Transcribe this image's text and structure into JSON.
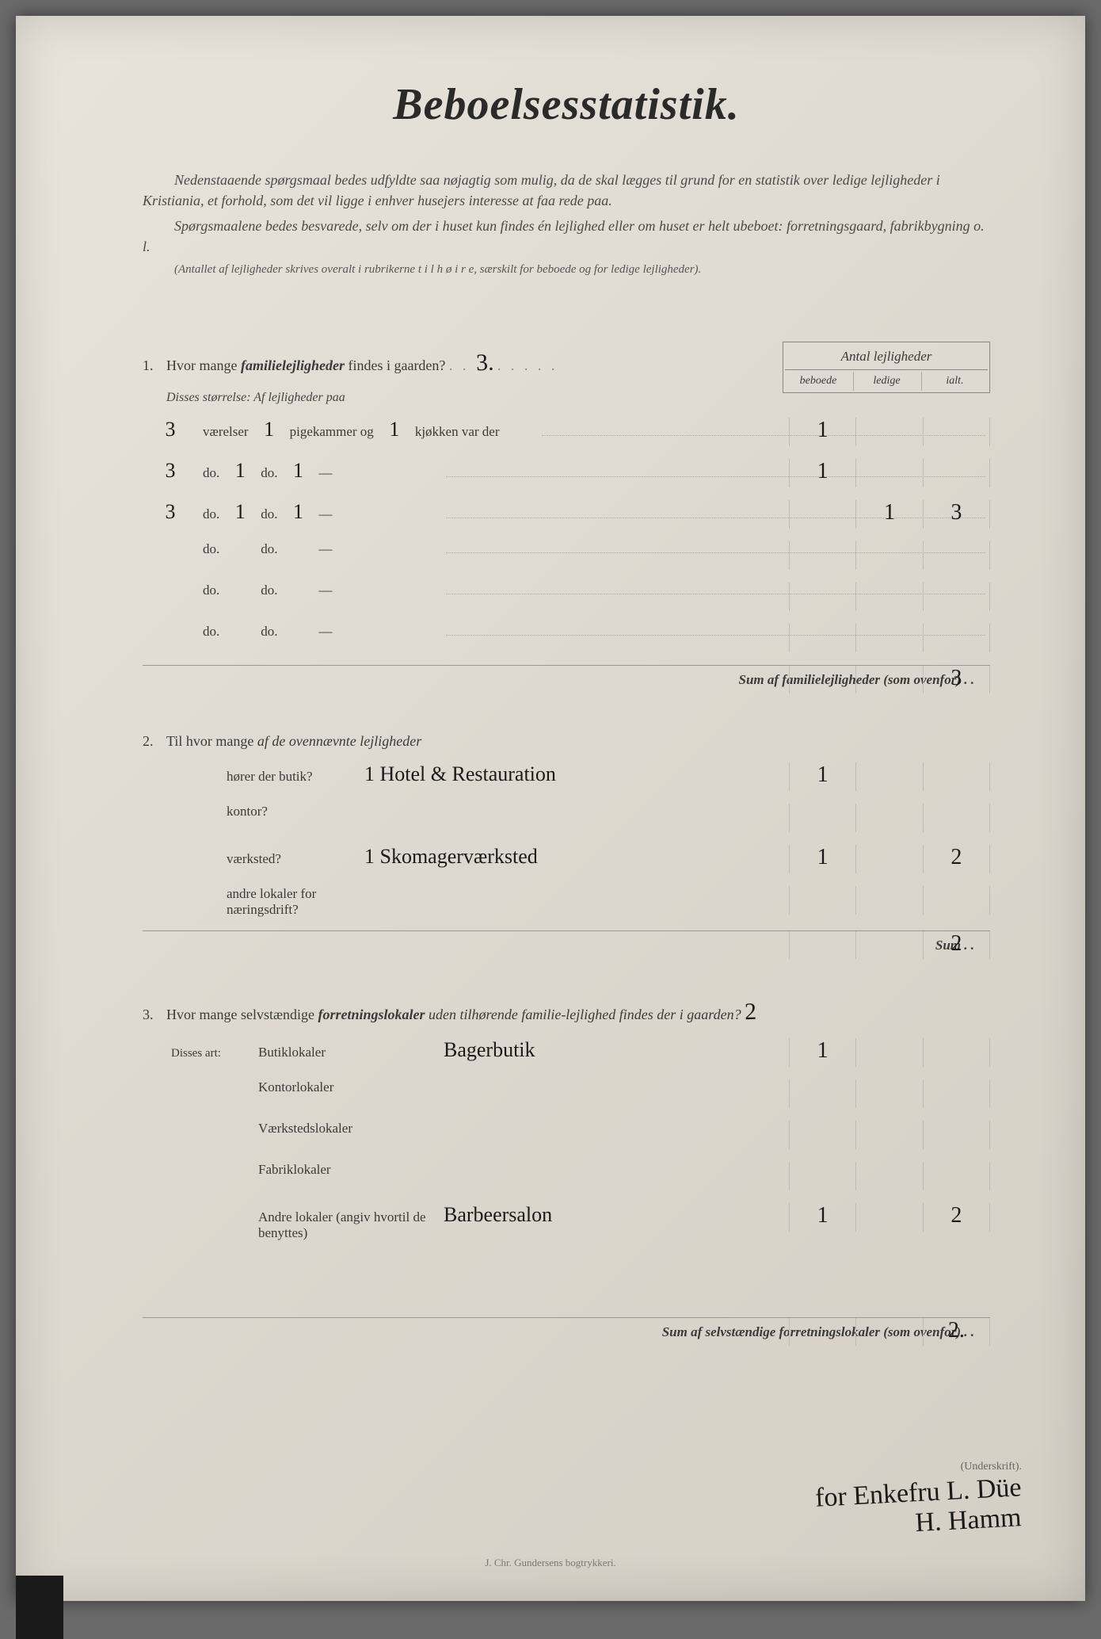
{
  "title": "Beboelsesstatistik.",
  "intro1": "Nedenstaaende spørgsmaal bedes udfyldte saa nøjagtig som mulig, da de skal lægges til grund for en statistik over ledige lejligheder i Kristiania, et forhold, som det vil ligge i enhver husejers interesse at faa rede paa.",
  "intro2": "Spørgsmaalene bedes besvarede, selv om der i huset kun findes én lejlighed eller om huset er helt ubeboet: forretningsgaard, fabrikbygning o. l.",
  "intro3": "(Antallet af lejligheder skrives overalt i rubrikerne t i l  h ø i r e, særskilt for beboede og for ledige lejligheder).",
  "col_header_top": "Antal lejligheder",
  "col_headers": {
    "beboede": "beboede",
    "ledige": "ledige",
    "ialt": "ialt."
  },
  "q1": {
    "num": "1.",
    "text_a": "Hvor mange ",
    "text_b": "familielejligheder",
    "text_c": " findes i gaarden?",
    "answer": "3.",
    "sub": "Disses størrelse:  Af lejligheder paa",
    "rows": [
      {
        "vaer": "3",
        "vaer_lbl": "værelser",
        "pige": "1",
        "pige_lbl": "pigekammer og",
        "kjok": "1",
        "kjok_lbl": "kjøkken var der",
        "beboede": "1",
        "ledige": "",
        "ialt": ""
      },
      {
        "vaer": "3",
        "vaer_lbl": "do.",
        "pige": "1",
        "pige_lbl": "do.",
        "kjok": "1",
        "kjok_lbl": "—",
        "beboede": "1",
        "ledige": "",
        "ialt": ""
      },
      {
        "vaer": "3",
        "vaer_lbl": "do.",
        "pige": "1",
        "pige_lbl": "do.",
        "kjok": "1",
        "kjok_lbl": "—",
        "beboede": "",
        "ledige": "1",
        "ialt": "3"
      },
      {
        "vaer": "",
        "vaer_lbl": "do.",
        "pige": "",
        "pige_lbl": "do.",
        "kjok": "",
        "kjok_lbl": "—",
        "beboede": "",
        "ledige": "",
        "ialt": ""
      },
      {
        "vaer": "",
        "vaer_lbl": "do.",
        "pige": "",
        "pige_lbl": "do.",
        "kjok": "",
        "kjok_lbl": "—",
        "beboede": "",
        "ledige": "",
        "ialt": ""
      },
      {
        "vaer": "",
        "vaer_lbl": "do.",
        "pige": "",
        "pige_lbl": "do.",
        "kjok": "",
        "kjok_lbl": "—",
        "beboede": "",
        "ledige": "",
        "ialt": ""
      }
    ],
    "sum_label": "Sum af familielejligheder (som ovenfor) . .",
    "sum_ialt": "3"
  },
  "q2": {
    "num": "2.",
    "text_a": "Til hvor mange ",
    "text_b": "af de ovennævnte lejligheder",
    "lines": [
      {
        "label": "hører der butik?",
        "hand": "1  Hotel & Restauration",
        "beboede": "1",
        "ledige": "",
        "ialt": ""
      },
      {
        "label": "kontor?",
        "hand": "",
        "beboede": "",
        "ledige": "",
        "ialt": ""
      },
      {
        "label": "værksted?",
        "hand": "1 Skomagerværksted",
        "beboede": "1",
        "ledige": "",
        "ialt": "2"
      },
      {
        "label": "andre lokaler for næringsdrift?",
        "hand": "",
        "beboede": "",
        "ledige": "",
        "ialt": ""
      }
    ],
    "sum_label": "Sum . .",
    "sum_ialt": "2"
  },
  "q3": {
    "num": "3.",
    "text_a": "Hvor mange selvstændige ",
    "text_b": "forretningslokaler",
    "text_c": " uden tilhørende familie-lejlighed findes der i gaarden?",
    "answer": "2",
    "sub": "Disses art:",
    "lines": [
      {
        "label": "Butiklokaler",
        "hand": "Bagerbutik",
        "beboede": "1",
        "ledige": "",
        "ialt": ""
      },
      {
        "label": "Kontorlokaler",
        "hand": "",
        "beboede": "",
        "ledige": "",
        "ialt": ""
      },
      {
        "label": "Værkstedslokaler",
        "hand": "",
        "beboede": "",
        "ledige": "",
        "ialt": ""
      },
      {
        "label": "Fabriklokaler",
        "hand": "",
        "beboede": "",
        "ledige": "",
        "ialt": ""
      },
      {
        "label": "Andre lokaler (angiv hvortil de benyttes)",
        "hand": "Barbeersalon",
        "beboede": "1",
        "ledige": "",
        "ialt": "2"
      }
    ],
    "sum_label": "Sum af selvstændige forretningslokaler (som ovenfor) . .",
    "sum_ialt": "2."
  },
  "signature_label": "(Underskrift).",
  "signature1": "for Enkefru L. Düe",
  "signature2": "H. Hamm",
  "printer": "J. Chr. Gundersens bogtrykkeri."
}
